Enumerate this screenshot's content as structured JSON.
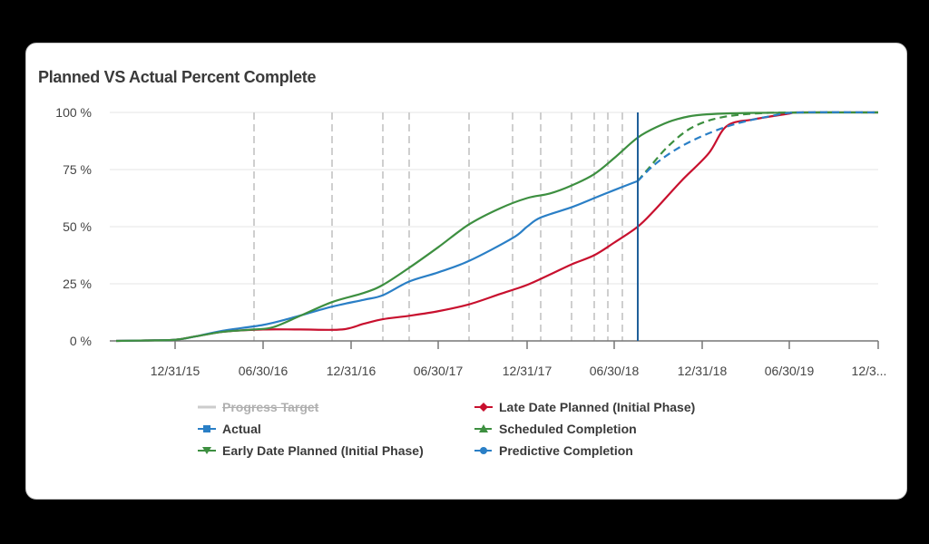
{
  "card": {
    "title": "Planned VS Actual Percent Complete"
  },
  "chart_data": {
    "type": "line",
    "title": "Planned VS Actual Percent Complete",
    "xlabel": "",
    "ylabel": "",
    "ylim": [
      0,
      100
    ],
    "y_ticks": [
      "0 %",
      "25 %",
      "50 %",
      "75 %",
      "100 %"
    ],
    "x_ticks": [
      "12/31/15",
      "06/30/16",
      "12/31/16",
      "06/30/17",
      "12/31/17",
      "06/30/18",
      "12/31/18",
      "06/30/19",
      "12/3..."
    ],
    "grid": {
      "horizontal": true
    },
    "legend_position": "bottom",
    "data_date_marker": {
      "x_approx": "2018-09",
      "color": "#1f5f99"
    },
    "progress_target_dashed_lines_approx": [
      "2016-06",
      "2016-11",
      "2017-02",
      "2017-04",
      "2017-08",
      "2017-11",
      "2018-01",
      "2018-03",
      "2018-05",
      "2018-06",
      "2018-07"
    ],
    "series": [
      {
        "name": "Progress Target",
        "color": "#cccccc",
        "hidden": true,
        "style": "solid",
        "marker": "none",
        "points": []
      },
      {
        "name": "Actual",
        "color": "#2a7fc6",
        "style": "solid",
        "marker": "square",
        "points": [
          [
            127,
            0
          ],
          [
            160,
            0.2
          ],
          [
            192,
            0.5
          ],
          [
            215,
            2
          ],
          [
            245,
            4.5
          ],
          [
            289,
            7
          ],
          [
            320,
            10
          ],
          [
            365,
            15
          ],
          [
            400,
            18
          ],
          [
            421,
            20
          ],
          [
            450,
            26
          ],
          [
            482,
            30
          ],
          [
            516,
            35
          ],
          [
            564,
            45
          ],
          [
            580,
            50
          ],
          [
            595,
            54
          ],
          [
            629,
            58.5
          ],
          [
            654,
            62.5
          ],
          [
            676,
            66
          ],
          [
            702,
            70
          ]
        ]
      },
      {
        "name": "Early Date Planned (Initial Phase)",
        "color": "#3d8f40",
        "style": "solid",
        "marker": "triangle-down",
        "points": [
          [
            127,
            0
          ],
          [
            160,
            0.2
          ],
          [
            192,
            0.5
          ],
          [
            215,
            2
          ],
          [
            245,
            4
          ],
          [
            279,
            5
          ],
          [
            300,
            6
          ],
          [
            330,
            11
          ],
          [
            365,
            17
          ],
          [
            400,
            21
          ],
          [
            421,
            24.5
          ],
          [
            450,
            32
          ],
          [
            482,
            41
          ],
          [
            516,
            51
          ],
          [
            550,
            58
          ],
          [
            580,
            62.5
          ],
          [
            605,
            64.5
          ],
          [
            629,
            68
          ],
          [
            654,
            73
          ],
          [
            676,
            80
          ],
          [
            702,
            89
          ],
          [
            725,
            94
          ],
          [
            745,
            97
          ],
          [
            773,
            99
          ],
          [
            830,
            99.8
          ],
          [
            967,
            100
          ]
        ]
      },
      {
        "name": "Late Date Planned (Initial Phase)",
        "color": "#c8102e",
        "style": "solid",
        "marker": "diamond",
        "points": [
          [
            127,
            0
          ],
          [
            160,
            0.2
          ],
          [
            192,
            0.5
          ],
          [
            215,
            2
          ],
          [
            245,
            4
          ],
          [
            289,
            5
          ],
          [
            330,
            5
          ],
          [
            376,
            5
          ],
          [
            400,
            7.5
          ],
          [
            421,
            9.5
          ],
          [
            450,
            11
          ],
          [
            482,
            13
          ],
          [
            516,
            16
          ],
          [
            550,
            20.5
          ],
          [
            580,
            24.5
          ],
          [
            605,
            29
          ],
          [
            629,
            33.5
          ],
          [
            654,
            37.5
          ],
          [
            676,
            43
          ],
          [
            702,
            50
          ],
          [
            720,
            57
          ],
          [
            750,
            70
          ],
          [
            780,
            82
          ],
          [
            800,
            94
          ],
          [
            830,
            97
          ],
          [
            869,
            99.5
          ],
          [
            880,
            100
          ],
          [
            967,
            100
          ]
        ]
      },
      {
        "name": "Scheduled Completion",
        "color": "#3d8f40",
        "style": "dashed",
        "marker": "triangle-up",
        "points": [
          [
            702,
            70
          ],
          [
            715,
            76
          ],
          [
            735,
            85
          ],
          [
            760,
            93
          ],
          [
            790,
            97.5
          ],
          [
            830,
            99.5
          ],
          [
            880,
            100
          ],
          [
            967,
            100
          ]
        ]
      },
      {
        "name": "Predictive Completion",
        "color": "#2a7fc6",
        "style": "dashed",
        "marker": "circle",
        "points": [
          [
            702,
            70
          ],
          [
            720,
            77
          ],
          [
            745,
            84
          ],
          [
            775,
            90
          ],
          [
            810,
            95
          ],
          [
            850,
            98.5
          ],
          [
            880,
            100
          ],
          [
            967,
            100
          ]
        ]
      }
    ]
  },
  "legend": {
    "items": [
      {
        "label": "Progress Target",
        "hidden": true
      },
      {
        "label": "Actual"
      },
      {
        "label": "Early Date Planned (Initial Phase)"
      },
      {
        "label": "Late Date Planned (Initial Phase)"
      },
      {
        "label": "Scheduled Completion"
      },
      {
        "label": "Predictive Completion"
      }
    ]
  }
}
